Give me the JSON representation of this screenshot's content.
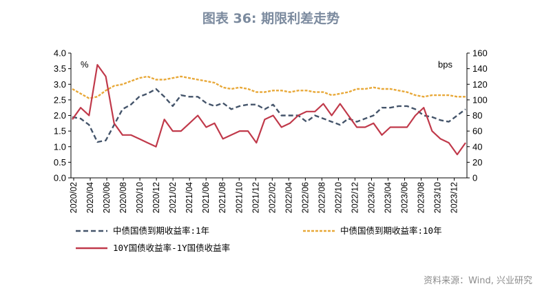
{
  "header": {
    "title": "图表 36: 期限利差走势"
  },
  "footer": {
    "source": "资料来源：Wind, 兴业研究"
  },
  "chart_data": {
    "type": "line",
    "title": "图表 36: 期限利差走势",
    "left_axis": {
      "unit": "%",
      "ylim": [
        0,
        4
      ],
      "ticks": [
        "4.0",
        "3.5",
        "3.0",
        "2.5",
        "2.0",
        "1.5",
        "1.0",
        "0.5",
        "0.0"
      ]
    },
    "right_axis": {
      "unit": "bps",
      "ylim": [
        0,
        160
      ],
      "ticks": [
        "160",
        "140",
        "120",
        "100",
        "80",
        "60",
        "40",
        "20",
        "0"
      ]
    },
    "x_ticks": [
      "2020/02",
      "2020/04",
      "2020/06",
      "2020/08",
      "2020/10",
      "2020/12",
      "2021/02",
      "2021/04",
      "2021/06",
      "2021/08",
      "2021/10",
      "2021/12",
      "2022/02",
      "2022/04",
      "2022/06",
      "2022/08",
      "2022/10",
      "2022/12",
      "2023/02",
      "2023/04",
      "2023/06",
      "2023/08",
      "2023/10",
      "2023/12"
    ],
    "grid": false,
    "legend_position": "bottom",
    "series": [
      {
        "name": "中债国债到期收益率:1年",
        "axis": "left",
        "style": "dashed",
        "color": "#44546a",
        "x": [
          "2020/02",
          "2020/03",
          "2020/04",
          "2020/05",
          "2020/06",
          "2020/07",
          "2020/08",
          "2020/09",
          "2020/10",
          "2020/11",
          "2020/12",
          "2021/01",
          "2021/02",
          "2021/03",
          "2021/04",
          "2021/05",
          "2021/06",
          "2021/07",
          "2021/08",
          "2021/09",
          "2021/10",
          "2021/11",
          "2021/12",
          "2022/01",
          "2022/02",
          "2022/03",
          "2022/04",
          "2022/05",
          "2022/06",
          "2022/07",
          "2022/08",
          "2022/09",
          "2022/10",
          "2022/11",
          "2022/12",
          "2023/01",
          "2023/02",
          "2023/03",
          "2023/04",
          "2023/05",
          "2023/06",
          "2023/07",
          "2023/08",
          "2023/09",
          "2023/10",
          "2023/11",
          "2023/12",
          "2024/01"
        ],
        "values": [
          1.95,
          1.9,
          1.7,
          1.15,
          1.2,
          1.7,
          2.2,
          2.35,
          2.6,
          2.7,
          2.85,
          2.6,
          2.3,
          2.65,
          2.6,
          2.6,
          2.4,
          2.3,
          2.4,
          2.2,
          2.3,
          2.35,
          2.35,
          2.2,
          2.35,
          2.0,
          2.0,
          2.0,
          1.8,
          2.0,
          1.9,
          1.8,
          1.7,
          1.9,
          1.8,
          1.9,
          2.0,
          2.25,
          2.25,
          2.3,
          2.3,
          2.2,
          2.0,
          1.95,
          1.85,
          1.8,
          2.0,
          2.2
        ]
      },
      {
        "name": "中债国债到期收益率:10年",
        "axis": "left",
        "style": "dashed",
        "color": "#e8a838",
        "x": [
          "2020/02",
          "2020/03",
          "2020/04",
          "2020/05",
          "2020/06",
          "2020/07",
          "2020/08",
          "2020/09",
          "2020/10",
          "2020/11",
          "2020/12",
          "2021/01",
          "2021/02",
          "2021/03",
          "2021/04",
          "2021/05",
          "2021/06",
          "2021/07",
          "2021/08",
          "2021/09",
          "2021/10",
          "2021/11",
          "2021/12",
          "2022/01",
          "2022/02",
          "2022/03",
          "2022/04",
          "2022/05",
          "2022/06",
          "2022/07",
          "2022/08",
          "2022/09",
          "2022/10",
          "2022/11",
          "2022/12",
          "2023/01",
          "2023/02",
          "2023/03",
          "2023/04",
          "2023/05",
          "2023/06",
          "2023/07",
          "2023/08",
          "2023/09",
          "2023/10",
          "2023/11",
          "2023/12",
          "2024/01"
        ],
        "values": [
          2.85,
          2.7,
          2.55,
          2.6,
          2.8,
          2.95,
          3.0,
          3.1,
          3.2,
          3.25,
          3.15,
          3.15,
          3.2,
          3.25,
          3.2,
          3.15,
          3.1,
          3.05,
          2.9,
          2.85,
          2.9,
          2.85,
          2.75,
          2.75,
          2.8,
          2.8,
          2.75,
          2.8,
          2.8,
          2.75,
          2.75,
          2.65,
          2.7,
          2.75,
          2.85,
          2.85,
          2.9,
          2.85,
          2.85,
          2.8,
          2.75,
          2.65,
          2.6,
          2.65,
          2.65,
          2.65,
          2.6,
          2.6
        ]
      },
      {
        "name": "10Y国债收益率-1Y国债收益率",
        "axis": "right",
        "style": "solid",
        "color": "#c0394a",
        "x": [
          "2020/02",
          "2020/03",
          "2020/04",
          "2020/05",
          "2020/06",
          "2020/07",
          "2020/08",
          "2020/09",
          "2020/10",
          "2020/11",
          "2020/12",
          "2021/01",
          "2021/02",
          "2021/03",
          "2021/04",
          "2021/05",
          "2021/06",
          "2021/07",
          "2021/08",
          "2021/09",
          "2021/10",
          "2021/11",
          "2021/12",
          "2022/01",
          "2022/02",
          "2022/03",
          "2022/04",
          "2022/05",
          "2022/06",
          "2022/07",
          "2022/08",
          "2022/09",
          "2022/10",
          "2022/11",
          "2022/12",
          "2023/01",
          "2023/02",
          "2023/03",
          "2023/04",
          "2023/05",
          "2023/06",
          "2023/07",
          "2023/08",
          "2023/09",
          "2023/10",
          "2023/11",
          "2023/12",
          "2024/01"
        ],
        "values": [
          75,
          90,
          80,
          145,
          130,
          70,
          55,
          55,
          50,
          45,
          40,
          75,
          60,
          60,
          70,
          80,
          65,
          70,
          50,
          55,
          60,
          60,
          45,
          75,
          80,
          65,
          70,
          80,
          85,
          85,
          95,
          80,
          95,
          80,
          65,
          65,
          70,
          55,
          65,
          65,
          65,
          80,
          90,
          60,
          50,
          45,
          30,
          45
        ]
      }
    ]
  }
}
